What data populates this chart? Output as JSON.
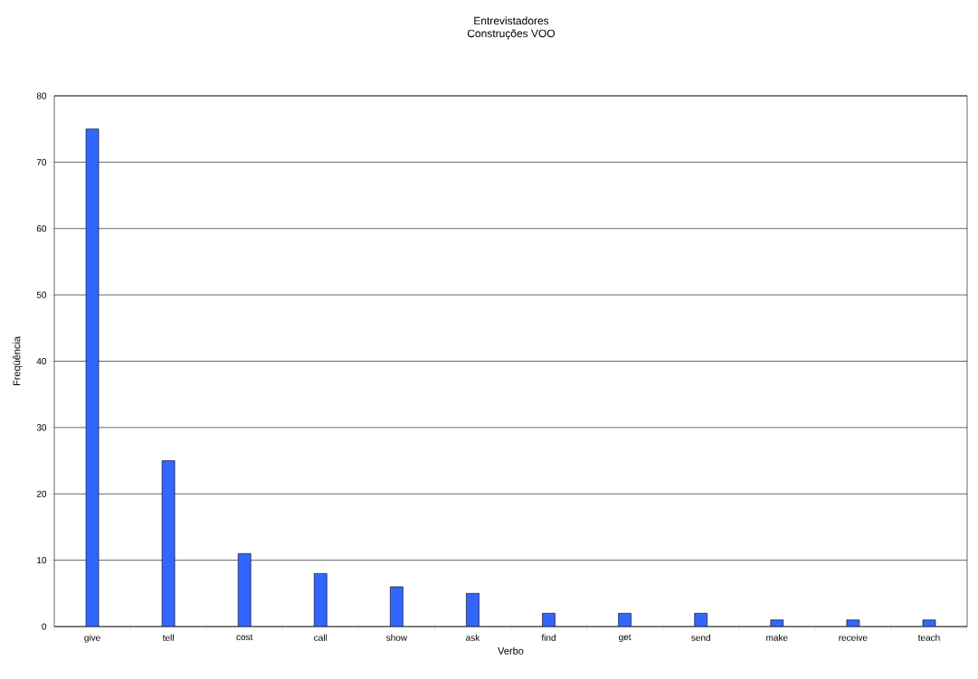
{
  "chart_data": {
    "type": "bar",
    "title": "Entrevistadores",
    "subtitle": "Construções VOO",
    "xlabel": "Verbo",
    "ylabel": "Freqüência",
    "categories": [
      "give",
      "tell",
      "cost",
      "call",
      "show",
      "ask",
      "find",
      "get",
      "send",
      "make",
      "receive",
      "teach"
    ],
    "values": [
      75,
      25,
      11,
      8,
      6,
      5,
      2,
      2,
      2,
      1,
      1,
      1
    ],
    "color": "#3366ff",
    "ylim": [
      0,
      80
    ],
    "yticks": [
      0,
      10,
      20,
      30,
      40,
      50,
      60,
      70,
      80
    ],
    "grid": "y"
  }
}
